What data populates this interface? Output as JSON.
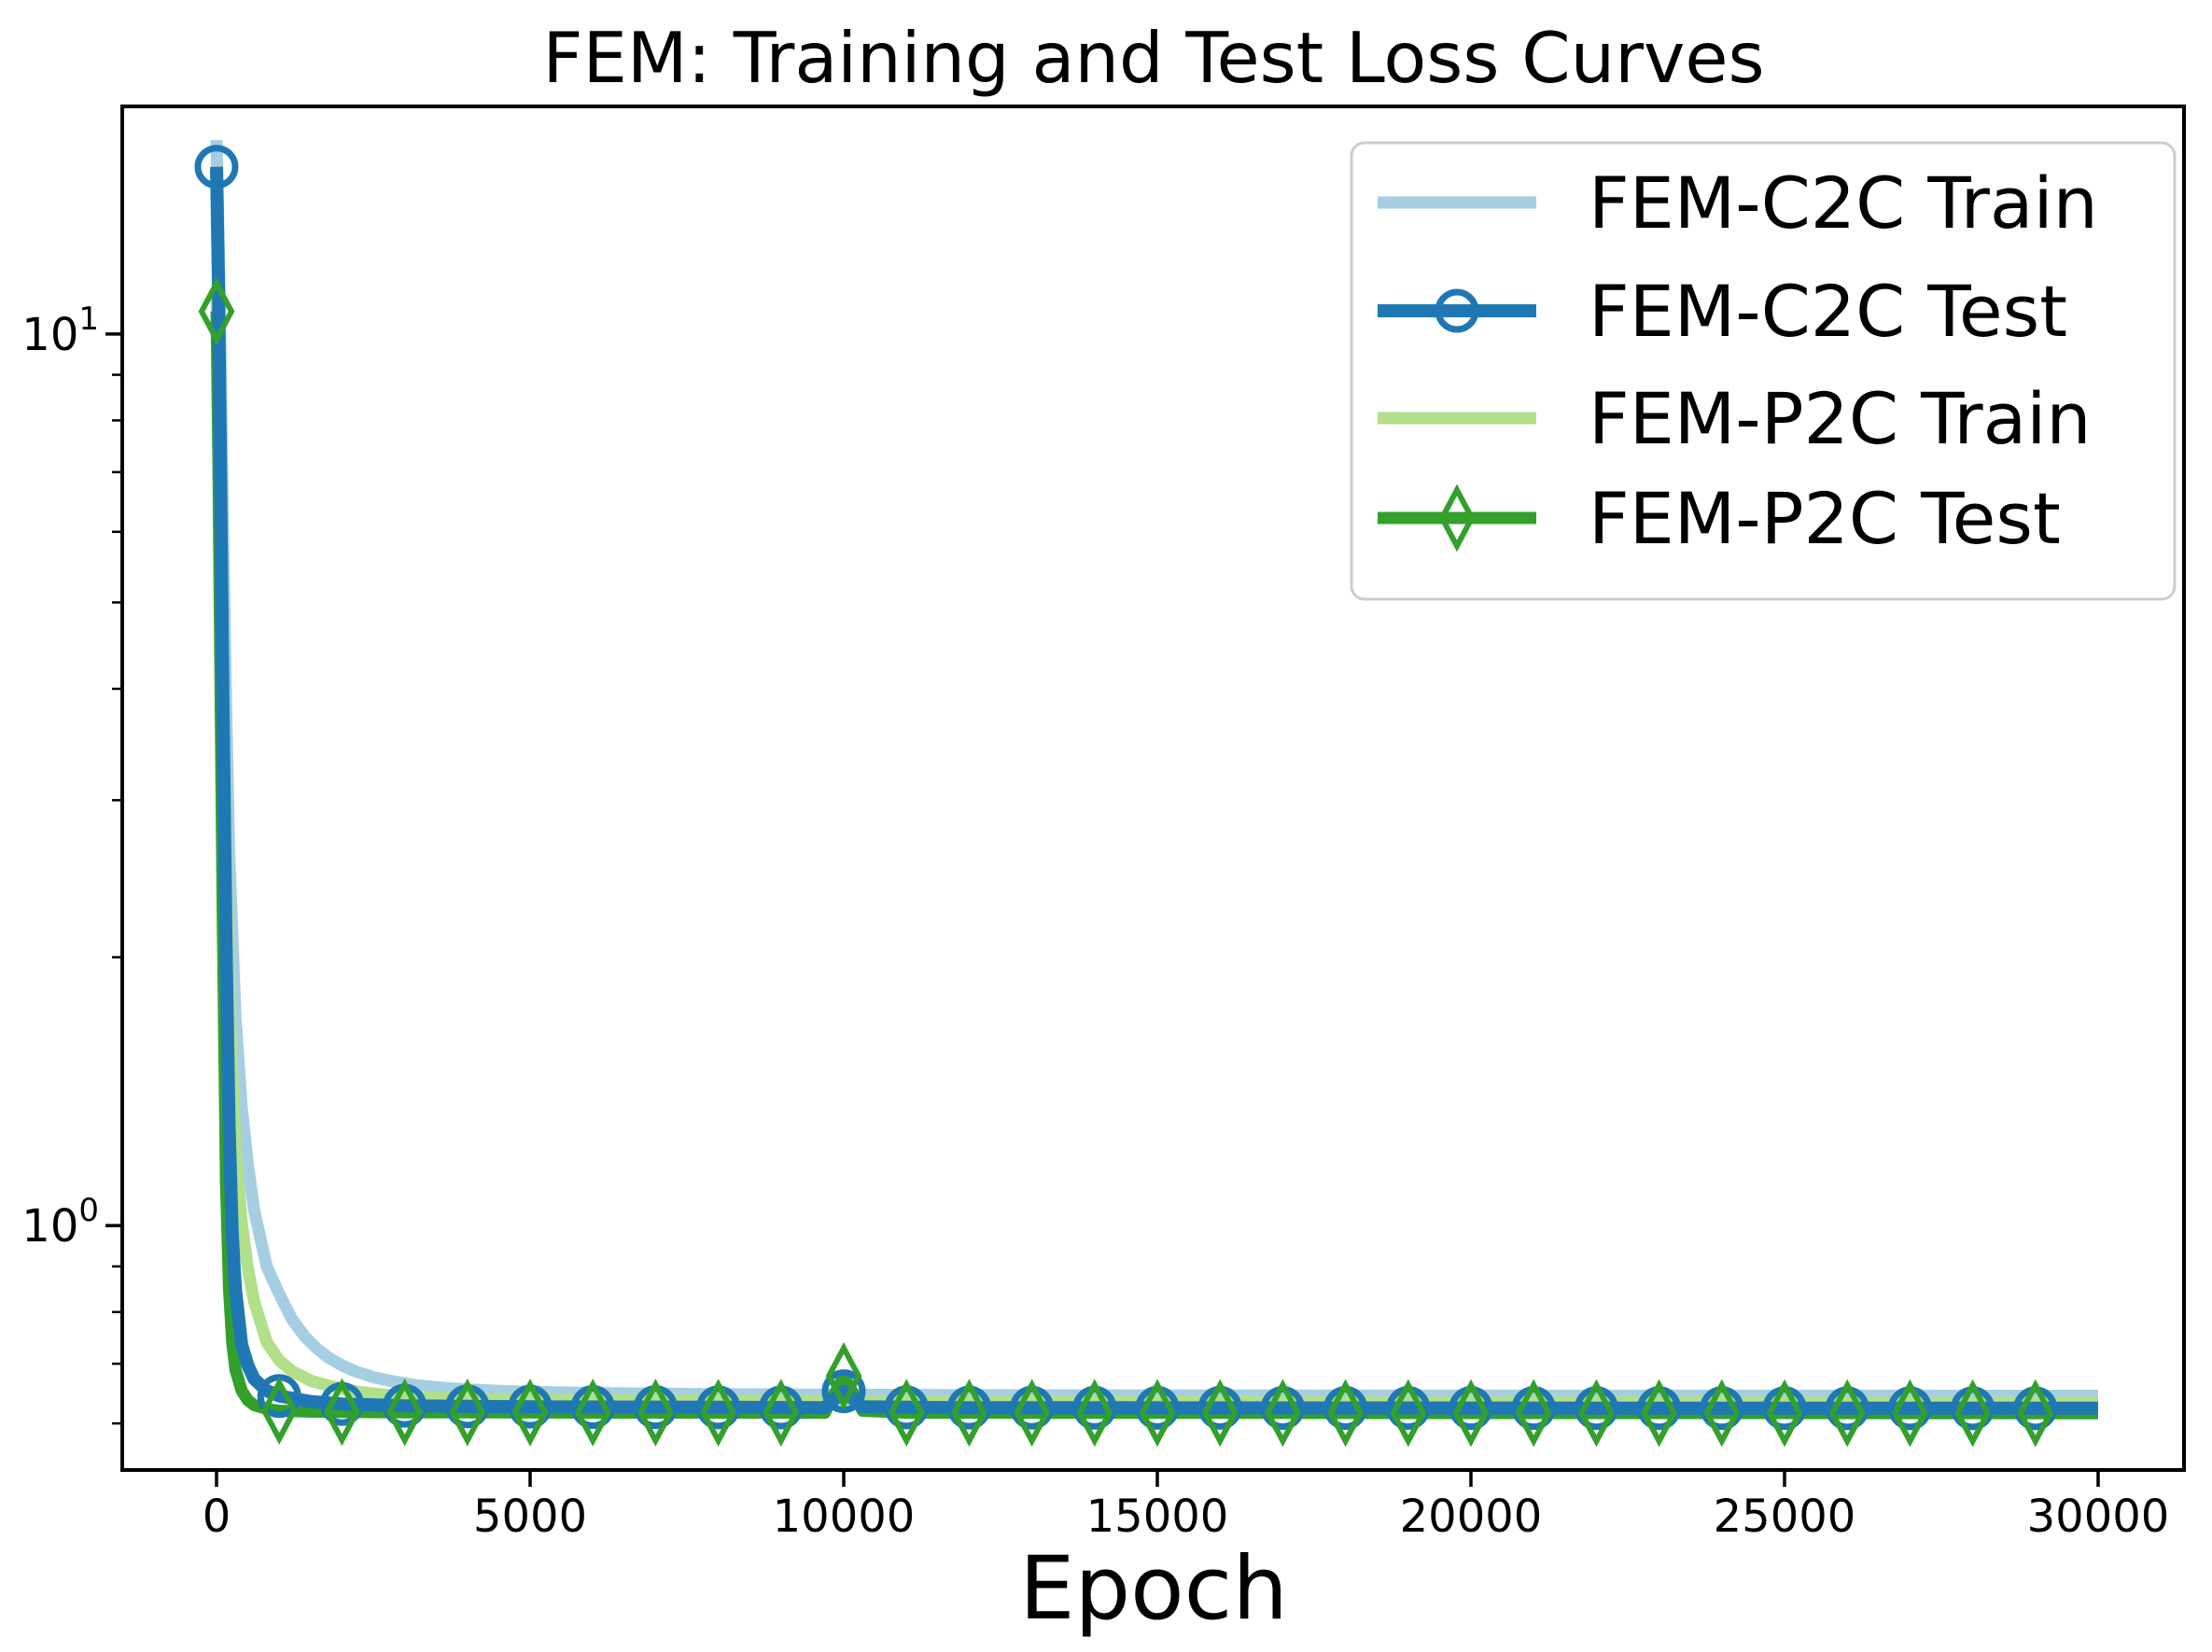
{
  "chart_data": {
    "type": "line",
    "title": "FEM: Training and Test Loss Curves",
    "xlabel": "Epoch",
    "ylabel": "",
    "x_scale": "linear",
    "y_scale": "log",
    "xlim": [
      -1503,
      31369
    ],
    "ylim": [
      0.532,
      18.0
    ],
    "grid": false,
    "x_ticks": [
      0,
      5000,
      10000,
      15000,
      20000,
      25000,
      30000
    ],
    "y_ticks": [
      {
        "value": 10,
        "base": "10",
        "exponent": "1"
      },
      {
        "value": 1,
        "base": "10",
        "exponent": "0"
      }
    ],
    "y_minor_ticks": [
      9,
      8,
      7,
      6,
      5,
      4,
      3,
      2,
      0.9,
      0.8,
      0.7,
      0.6
    ],
    "series": [
      {
        "name": "FEM-C2C Train",
        "color": "#a6cee3",
        "line_width": 13,
        "marker": null,
        "points": [
          [
            0,
            16.5
          ],
          [
            50,
            11.0
          ],
          [
            100,
            6.3
          ],
          [
            150,
            3.9
          ],
          [
            200,
            2.65
          ],
          [
            300,
            1.72
          ],
          [
            400,
            1.36
          ],
          [
            500,
            1.17
          ],
          [
            600,
            1.04
          ],
          [
            800,
            0.9
          ],
          [
            1000,
            0.838
          ],
          [
            1200,
            0.786
          ],
          [
            1400,
            0.752
          ],
          [
            1600,
            0.728
          ],
          [
            1800,
            0.71
          ],
          [
            2000,
            0.697
          ],
          [
            2200,
            0.687
          ],
          [
            2500,
            0.676
          ],
          [
            2800,
            0.669
          ],
          [
            3200,
            0.662
          ],
          [
            3600,
            0.658
          ],
          [
            4000,
            0.655
          ],
          [
            4500,
            0.6525
          ],
          [
            5000,
            0.651
          ],
          [
            6000,
            0.649
          ],
          [
            7000,
            0.648
          ],
          [
            8000,
            0.647
          ],
          [
            10000,
            0.646
          ],
          [
            12000,
            0.6455
          ],
          [
            15000,
            0.645
          ],
          [
            20000,
            0.6447
          ],
          [
            25000,
            0.6445
          ],
          [
            30000,
            0.6443
          ]
        ]
      },
      {
        "name": "FEM-P2C Train",
        "color": "#b2df8a",
        "line_width": 13,
        "marker": null,
        "points": [
          [
            0,
            11.2
          ],
          [
            50,
            7.0
          ],
          [
            100,
            4.1
          ],
          [
            150,
            2.55
          ],
          [
            200,
            1.78
          ],
          [
            300,
            1.23
          ],
          [
            400,
            1.01
          ],
          [
            500,
            0.895
          ],
          [
            600,
            0.822
          ],
          [
            800,
            0.74
          ],
          [
            1000,
            0.706
          ],
          [
            1200,
            0.687
          ],
          [
            1500,
            0.67
          ],
          [
            1800,
            0.661
          ],
          [
            2200,
            0.652
          ],
          [
            2600,
            0.647
          ],
          [
            3000,
            0.644
          ],
          [
            4000,
            0.64
          ],
          [
            5000,
            0.6385
          ],
          [
            7000,
            0.637
          ],
          [
            9000,
            0.636
          ],
          [
            10000,
            0.6355
          ],
          [
            12000,
            0.635
          ],
          [
            15000,
            0.6345
          ],
          [
            20000,
            0.634
          ],
          [
            25000,
            0.6335
          ],
          [
            30000,
            0.633
          ]
        ]
      },
      {
        "name": "FEM-P2C Test",
        "color": "#33a02c",
        "line_width": 13,
        "marker": "thin-diamond",
        "marker_every": 1000,
        "points": [
          [
            0,
            10.6
          ],
          [
            30,
            7.2
          ],
          [
            60,
            4.3
          ],
          [
            100,
            2.2
          ],
          [
            150,
            1.12
          ],
          [
            200,
            0.85
          ],
          [
            250,
            0.74
          ],
          [
            300,
            0.69
          ],
          [
            400,
            0.653
          ],
          [
            500,
            0.637
          ],
          [
            600,
            0.629
          ],
          [
            800,
            0.623
          ],
          [
            1000,
            0.62
          ],
          [
            1500,
            0.6185
          ],
          [
            2000,
            0.618
          ],
          [
            3000,
            0.6175
          ],
          [
            5000,
            0.6172
          ],
          [
            7000,
            0.617
          ],
          [
            9000,
            0.6168
          ],
          [
            9700,
            0.6167
          ],
          [
            10000,
            0.678
          ],
          [
            10300,
            0.62
          ],
          [
            11000,
            0.6168
          ],
          [
            13000,
            0.6166
          ],
          [
            16000,
            0.6165
          ],
          [
            20000,
            0.6163
          ],
          [
            24000,
            0.6162
          ],
          [
            27000,
            0.6161
          ],
          [
            30000,
            0.616
          ]
        ]
      },
      {
        "name": "FEM-C2C Test",
        "color": "#1f78b4",
        "line_width": 14,
        "marker": "circle",
        "marker_every": 1000,
        "points": [
          [
            0,
            15.4
          ],
          [
            30,
            11.5
          ],
          [
            60,
            7.5
          ],
          [
            100,
            4.0
          ],
          [
            150,
            2.1
          ],
          [
            200,
            1.3
          ],
          [
            250,
            0.98
          ],
          [
            300,
            0.85
          ],
          [
            400,
            0.735
          ],
          [
            500,
            0.697
          ],
          [
            600,
            0.673
          ],
          [
            800,
            0.653
          ],
          [
            1000,
            0.644
          ],
          [
            1500,
            0.635
          ],
          [
            2000,
            0.631
          ],
          [
            3000,
            0.628
          ],
          [
            4000,
            0.627
          ],
          [
            5000,
            0.6265
          ],
          [
            6000,
            0.626
          ],
          [
            7000,
            0.6258
          ],
          [
            8000,
            0.6255
          ],
          [
            9000,
            0.6252
          ],
          [
            9700,
            0.625
          ],
          [
            10000,
            0.652
          ],
          [
            10300,
            0.6265
          ],
          [
            11000,
            0.6255
          ],
          [
            12000,
            0.625
          ],
          [
            14000,
            0.6248
          ],
          [
            16000,
            0.6246
          ],
          [
            18000,
            0.6245
          ],
          [
            20000,
            0.6243
          ],
          [
            22000,
            0.6242
          ],
          [
            24000,
            0.6241
          ],
          [
            26000,
            0.624
          ],
          [
            28000,
            0.624
          ],
          [
            30000,
            0.624
          ]
        ]
      }
    ],
    "legend": {
      "position": "upper right",
      "entries": [
        {
          "label": "FEM-C2C Train",
          "series_index": 0
        },
        {
          "label": "FEM-C2C Test",
          "series_index": 3
        },
        {
          "label": "FEM-P2C Train",
          "series_index": 1
        },
        {
          "label": "FEM-P2C Test",
          "series_index": 2
        }
      ]
    },
    "annotations": {
      "spike_epoch": 10000,
      "final_loss_c2c_test": 0.624,
      "final_loss_p2c_test": 0.616,
      "initial_loss_c2c_test": 15.4,
      "initial_loss_p2c_test": 10.6
    }
  },
  "colors": {
    "spine": "#000000",
    "background": "#ffffff",
    "legend_border": "#cccccc"
  }
}
